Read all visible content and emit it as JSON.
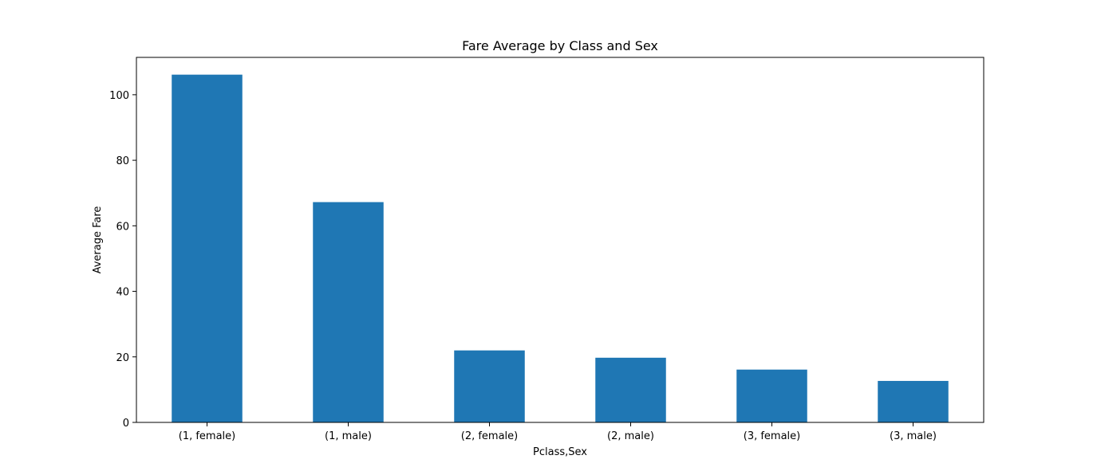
{
  "chart_data": {
    "type": "bar",
    "title": "Fare Average by Class and Sex",
    "xlabel": "Pclass,Sex",
    "ylabel": "Average Fare",
    "categories": [
      "(1, female)",
      "(1, male)",
      "(2, female)",
      "(2, male)",
      "(3, female)",
      "(3, male)"
    ],
    "values": [
      106.13,
      67.23,
      21.97,
      19.74,
      16.12,
      12.66
    ],
    "ylim": [
      0,
      111.4
    ],
    "yticks": [
      0,
      20,
      40,
      60,
      80,
      100
    ],
    "bar_color": "#1f77b4",
    "grid": false,
    "legend": "none"
  }
}
